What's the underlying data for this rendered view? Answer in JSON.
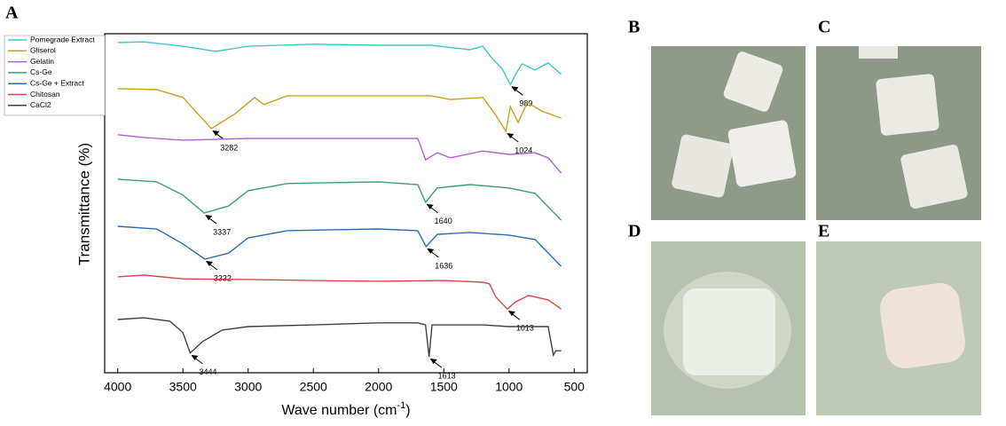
{
  "panels": {
    "a": "A",
    "b": "B",
    "c": "C",
    "d": "D",
    "e": "E"
  },
  "chart_data": {
    "type": "line",
    "xlabel": {
      "text": "Wave number (cm",
      "sup": "-1",
      "end": ")"
    },
    "ylabel": "Transmittance (%)",
    "xlim": [
      4100,
      400
    ],
    "ylim": [
      0,
      100
    ],
    "xticks": [
      4000,
      3500,
      3000,
      2500,
      2000,
      1500,
      1000,
      500
    ],
    "legend": "top-left",
    "series": [
      {
        "name": "Pomegrade Extract",
        "color": "#3cc8c8",
        "x": [
          4000,
          3800,
          3500,
          3250,
          3000,
          2500,
          2000,
          1600,
          1300,
          1200,
          1150,
          1050,
          989,
          950,
          900,
          800,
          700,
          600
        ],
        "values": [
          97.4,
          97.6,
          96.3,
          94.8,
          96.3,
          96.9,
          96.6,
          96.6,
          95.3,
          96.3,
          93.7,
          89.5,
          85.0,
          88.0,
          91.1,
          89.3,
          91.4,
          88.0
        ],
        "peaks": [
          989
        ]
      },
      {
        "name": "Gliserol",
        "color": "#c8a020",
        "x": [
          4000,
          3700,
          3500,
          3282,
          3100,
          2950,
          2880,
          2700,
          2000,
          1600,
          1450,
          1200,
          1100,
          1024,
          990,
          930,
          860,
          750,
          600
        ],
        "values": [
          83.8,
          83.5,
          81.2,
          72.0,
          76.4,
          81.2,
          79.1,
          81.7,
          81.7,
          81.7,
          80.6,
          81.2,
          75.9,
          71.2,
          78.5,
          73.8,
          79.8,
          77.2,
          75.1
        ],
        "peaks": [
          3282,
          1024
        ]
      },
      {
        "name": "Gelatin",
        "color": "#b060d0",
        "x": [
          4000,
          3800,
          3500,
          3000,
          2500,
          2000,
          1700,
          1640,
          1550,
          1450,
          1200,
          1000,
          800,
          700,
          600
        ],
        "values": [
          70.2,
          69.4,
          68.6,
          69.1,
          69.1,
          69.1,
          69.1,
          62.8,
          64.9,
          63.4,
          65.4,
          64.4,
          64.9,
          63.4,
          58.9
        ],
        "peaks": []
      },
      {
        "name": "Cs-Ge",
        "color": "#3aa070",
        "x": [
          4000,
          3700,
          3500,
          3337,
          3150,
          3000,
          2700,
          2000,
          1700,
          1640,
          1550,
          1300,
          1000,
          800,
          600
        ],
        "values": [
          57.1,
          56.3,
          52.4,
          47.1,
          49.2,
          53.7,
          55.8,
          56.3,
          55.5,
          50.3,
          54.5,
          55.5,
          54.5,
          52.9,
          45.0
        ],
        "peaks": [
          3337,
          1640
        ]
      },
      {
        "name": "Cs-Ge + Extract",
        "color": "#2a6ab8",
        "x": [
          4000,
          3700,
          3500,
          3332,
          3150,
          3000,
          2700,
          2000,
          1700,
          1636,
          1550,
          1300,
          1000,
          800,
          600
        ],
        "values": [
          43.2,
          42.4,
          38.0,
          33.5,
          35.3,
          39.8,
          41.9,
          42.4,
          41.9,
          37.2,
          40.8,
          41.4,
          40.6,
          39.3,
          31.4
        ],
        "peaks": [
          3332,
          1636
        ]
      },
      {
        "name": "Chitosan",
        "color": "#d84848",
        "x": [
          4000,
          3800,
          3500,
          3000,
          2500,
          2000,
          1500,
          1200,
          1150,
          1100,
          1013,
          950,
          850,
          700,
          600
        ],
        "values": [
          28.3,
          28.8,
          27.7,
          27.5,
          27.2,
          27.0,
          27.2,
          26.7,
          26.2,
          22.3,
          18.8,
          20.9,
          22.8,
          21.5,
          18.8
        ],
        "peaks": [
          1013
        ]
      },
      {
        "name": "CaCl2",
        "color": "#404040",
        "x": [
          4000,
          3800,
          3600,
          3500,
          3444,
          3350,
          3200,
          3000,
          2500,
          2000,
          1700,
          1640,
          1613,
          1590,
          1200,
          1000,
          700,
          660,
          640,
          600
        ],
        "values": [
          15.7,
          16.2,
          15.2,
          11.8,
          5.8,
          9.2,
          12.6,
          13.6,
          14.1,
          14.7,
          14.7,
          14.1,
          4.7,
          14.1,
          14.1,
          13.6,
          13.6,
          5.2,
          6.5,
          6.5
        ],
        "peaks": [
          3444,
          1613
        ]
      }
    ]
  }
}
